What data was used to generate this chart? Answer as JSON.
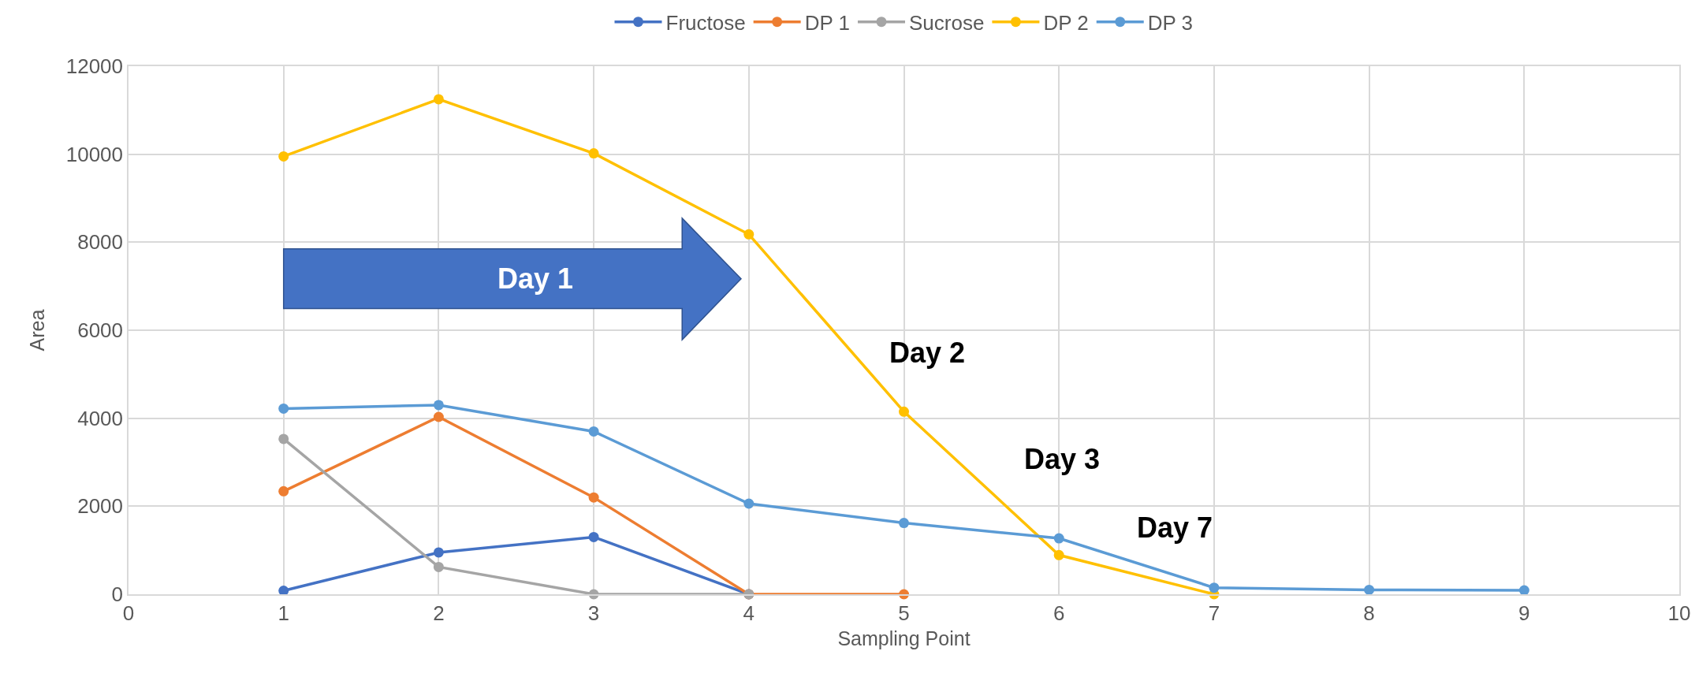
{
  "chart_data": {
    "type": "line",
    "xlabel": "Sampling Point",
    "ylabel": "Area",
    "xlim": [
      0,
      10
    ],
    "xticks": [
      0,
      1,
      2,
      3,
      4,
      5,
      6,
      7,
      8,
      9,
      10
    ],
    "ylim": [
      0,
      12000
    ],
    "yticks": [
      0,
      2000,
      4000,
      6000,
      8000,
      10000,
      12000
    ],
    "grid": true,
    "legend": "top",
    "marker": "circle",
    "line_style": "solid",
    "series": [
      {
        "name": "Fructose",
        "color": "#4472c4",
        "x": [
          1,
          2,
          3,
          4
        ],
        "values": [
          80,
          950,
          1300,
          0
        ]
      },
      {
        "name": "DP 1",
        "color": "#ed7d31",
        "x": [
          1,
          2,
          3,
          4,
          5
        ],
        "values": [
          2340,
          4030,
          2200,
          0,
          0
        ]
      },
      {
        "name": "Sucrose",
        "color": "#a5a5a5",
        "x": [
          1,
          2,
          3,
          4
        ],
        "values": [
          3530,
          620,
          0,
          0
        ]
      },
      {
        "name": "DP 2",
        "color": "#ffc000",
        "x": [
          1,
          2,
          3,
          4,
          5,
          6,
          7
        ],
        "values": [
          9950,
          11250,
          10020,
          8180,
          4150,
          890,
          0
        ]
      },
      {
        "name": "DP 3",
        "color": "#5b9bd5",
        "x": [
          1,
          2,
          3,
          4,
          5,
          6,
          7,
          8,
          9
        ],
        "values": [
          4220,
          4300,
          3700,
          2060,
          1620,
          1270,
          150,
          100,
          90
        ]
      }
    ],
    "annotations": [
      "Day 1",
      "Day 2",
      "Day 3",
      "Day 7"
    ]
  }
}
